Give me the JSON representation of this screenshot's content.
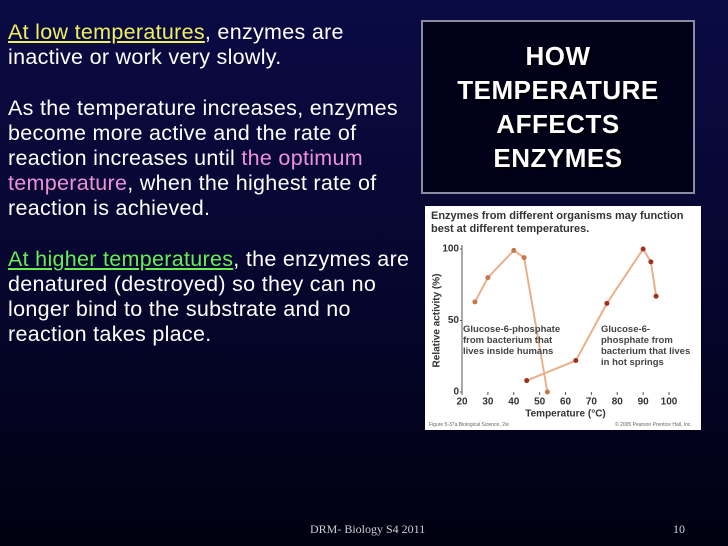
{
  "slide": {
    "paragraphs": [
      {
        "runs": [
          {
            "text": "At low temperatures",
            "color": "#f0f05a",
            "underline": true
          },
          {
            "text": ", enzymes are inactive or work very slowly."
          }
        ]
      },
      {
        "runs": [
          {
            "text": "As the temperature increases, enzymes become more active and the rate of reaction increases until "
          },
          {
            "text": "the optimum temperature",
            "color": "#f090d8"
          },
          {
            "text": ", when the highest rate of reaction is achieved."
          }
        ]
      },
      {
        "runs": [
          {
            "text": "At higher temperatures",
            "color": "#66ee55",
            "underline": true
          },
          {
            "text": ", the enzymes are denatured (destroyed) so they can no longer bind to the substrate and no reaction takes place."
          }
        ]
      }
    ],
    "title": "HOW TEMPERATURE AFFECTS ENZYMES",
    "footer": "DRM- Biology S4 2011",
    "page_number": "10"
  },
  "chart_data": {
    "type": "line",
    "title": "Enzymes from different organisms may function best at different temperatures.",
    "x_label": "Temperature (°C)",
    "y_label": "Relative activity (%)",
    "xlim": [
      20,
      100
    ],
    "xticks": [
      20,
      30,
      40,
      50,
      60,
      70,
      80,
      90,
      100
    ],
    "ylim": [
      0,
      100
    ],
    "yticks": [
      0,
      50,
      100
    ],
    "series": [
      {
        "name": "Glucose-6-phosphate from bacterium that lives inside humans",
        "color": "#e9b08a",
        "marker_color": "#c8764a",
        "x": [
          25,
          30,
          40,
          44,
          53
        ],
        "values": [
          63,
          80,
          99,
          94,
          0
        ]
      },
      {
        "name": "Glucose-6-phosphate from bacterium that lives in hot springs",
        "color": "#e9b08a",
        "marker_color": "#a03020",
        "x": [
          45,
          64,
          76,
          90,
          93,
          95
        ],
        "values": [
          8,
          22,
          62,
          100,
          91,
          67
        ]
      }
    ],
    "credits": [
      "Figure 5-37a Biological Science, 2/e",
      "© 2005 Pearson Prentice Hall, Inc."
    ]
  }
}
